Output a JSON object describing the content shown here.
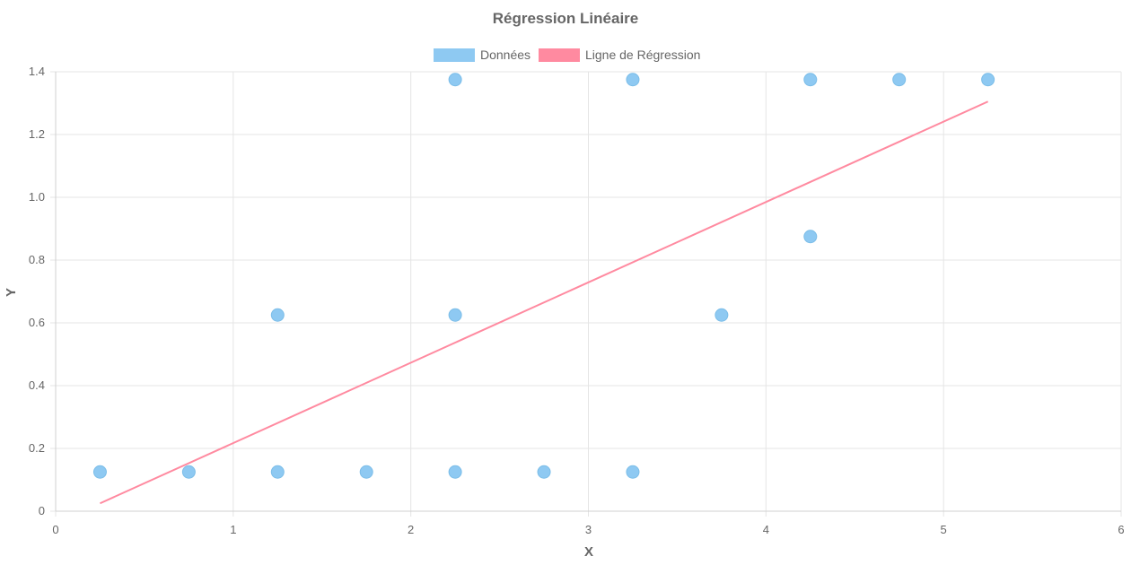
{
  "chart_data": {
    "type": "scatter",
    "title": "Régression Linéaire",
    "xlabel": "X",
    "ylabel": "Y",
    "xlim": [
      0,
      6
    ],
    "ylim": [
      0,
      1.4
    ],
    "x_ticks": [
      "0",
      "1",
      "2",
      "3",
      "4",
      "5",
      "6"
    ],
    "y_ticks": [
      "0",
      "0.2",
      "0.4",
      "0.6",
      "0.8",
      "1.0",
      "1.2",
      "1.4"
    ],
    "grid": true,
    "legend_position": "top",
    "series": [
      {
        "name": "Données",
        "kind": "scatter",
        "color": "#8ec9f2",
        "points": [
          [
            0.25,
            0.125
          ],
          [
            0.75,
            0.125
          ],
          [
            1.25,
            0.125
          ],
          [
            1.75,
            0.125
          ],
          [
            2.25,
            0.125
          ],
          [
            2.75,
            0.125
          ],
          [
            3.25,
            0.125
          ],
          [
            1.25,
            0.625
          ],
          [
            2.25,
            0.625
          ],
          [
            3.75,
            0.625
          ],
          [
            4.25,
            0.875
          ],
          [
            2.25,
            1.375
          ],
          [
            3.25,
            1.375
          ],
          [
            4.25,
            1.375
          ],
          [
            4.75,
            1.375
          ],
          [
            5.25,
            1.375
          ]
        ]
      },
      {
        "name": "Ligne de Régression",
        "kind": "line",
        "color": "#ff8aa0",
        "points": [
          [
            0.25,
            0.025
          ],
          [
            5.25,
            1.305
          ]
        ]
      }
    ]
  }
}
